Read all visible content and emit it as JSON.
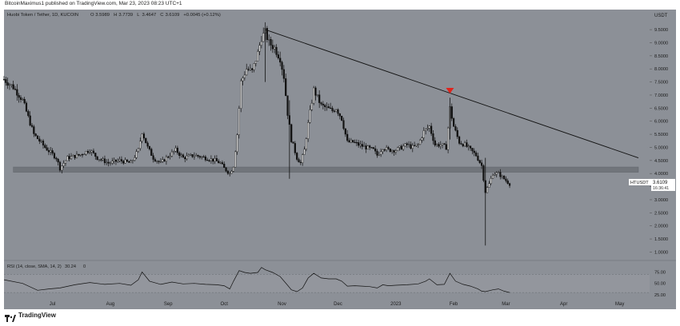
{
  "header": {
    "publisher_text": "BitcoinMaximus1 published on TradingView.com, Mar 23, 2023 08:23 UTC+1"
  },
  "footer": {
    "brand": "TradingView"
  },
  "colors": {
    "background": "#8c9097",
    "candle": "#111111",
    "trendline": "#111111",
    "support_zone": "#6f7379",
    "marker": "#e0231c",
    "price_tag_bg": "#ffffff"
  },
  "chart_data": [
    {
      "type": "candlestick",
      "title": "Huobi Token / Tether, 1D, KUCOIN",
      "ohlc_header": {
        "o_label": "O",
        "o": "3.5989",
        "h_label": "H",
        "h": "3.7739",
        "l_label": "L",
        "l": "3.4647",
        "c_label": "C",
        "c": "3.6109",
        "change": "+0.0045 (+0.12%)"
      },
      "currency": "USDT",
      "y_ticks": [
        "9.5000",
        "9.0000",
        "8.5000",
        "8.0000",
        "7.5000",
        "7.0000",
        "6.5000",
        "6.0000",
        "5.5000",
        "5.0000",
        "4.5000",
        "4.0000",
        "3.5000",
        "3.0000",
        "2.5000",
        "2.0000",
        "1.5000",
        "1.0000"
      ],
      "ylim": [
        0.8,
        9.9
      ],
      "x_ticks": [
        {
          "label": "Jul",
          "day": 16
        },
        {
          "label": "Aug",
          "day": 47
        },
        {
          "label": "Sep",
          "day": 78
        },
        {
          "label": "Oct",
          "day": 108
        },
        {
          "label": "Nov",
          "day": 139
        },
        {
          "label": "Dec",
          "day": 169
        },
        {
          "label": "2023",
          "day": 200
        },
        {
          "label": "Feb",
          "day": 231
        },
        {
          "label": "Mar",
          "day": 259
        },
        {
          "label": "Apr",
          "day": 290
        },
        {
          "label": "May",
          "day": 320
        }
      ],
      "x_range_days": [
        -10,
        336
      ],
      "close_path": [
        [
          -10,
          7.6
        ],
        [
          -5,
          7.3
        ],
        [
          0,
          6.8
        ],
        [
          6,
          5.5
        ],
        [
          12,
          5.0
        ],
        [
          18,
          4.6
        ],
        [
          20,
          4.2
        ],
        [
          24,
          4.6
        ],
        [
          30,
          4.7
        ],
        [
          36,
          4.9
        ],
        [
          40,
          4.6
        ],
        [
          46,
          4.4
        ],
        [
          52,
          4.5
        ],
        [
          58,
          4.4
        ],
        [
          62,
          4.9
        ],
        [
          64,
          5.6
        ],
        [
          67,
          5.0
        ],
        [
          70,
          4.6
        ],
        [
          74,
          4.4
        ],
        [
          77,
          4.6
        ],
        [
          82,
          4.9
        ],
        [
          86,
          4.6
        ],
        [
          92,
          4.7
        ],
        [
          98,
          4.6
        ],
        [
          103,
          4.5
        ],
        [
          106,
          4.4
        ],
        [
          108,
          4.2
        ],
        [
          111,
          4.0
        ],
        [
          113,
          4.3
        ],
        [
          115,
          5.5
        ],
        [
          117,
          7.5
        ],
        [
          120,
          8.0
        ],
        [
          123,
          7.9
        ],
        [
          126,
          8.6
        ],
        [
          128,
          9.2
        ],
        [
          130,
          9.4
        ],
        [
          132,
          9.0
        ],
        [
          135,
          8.8
        ],
        [
          138,
          8.4
        ],
        [
          140,
          7.7
        ],
        [
          142,
          6.3
        ],
        [
          144,
          5.3
        ],
        [
          147,
          4.6
        ],
        [
          149,
          4.4
        ],
        [
          151,
          4.9
        ],
        [
          153,
          5.9
        ],
        [
          156,
          7.2
        ],
        [
          158,
          6.9
        ],
        [
          160,
          6.6
        ],
        [
          163,
          6.5
        ],
        [
          166,
          6.4
        ],
        [
          168,
          6.5
        ],
        [
          171,
          6.1
        ],
        [
          174,
          5.2
        ],
        [
          177,
          5.2
        ],
        [
          180,
          5.1
        ],
        [
          184,
          5.0
        ],
        [
          188,
          4.9
        ],
        [
          190,
          4.7
        ],
        [
          193,
          5.0
        ],
        [
          196,
          4.9
        ],
        [
          200,
          4.9
        ],
        [
          203,
          5.0
        ],
        [
          206,
          5.1
        ],
        [
          209,
          5.0
        ],
        [
          212,
          5.1
        ],
        [
          215,
          5.6
        ],
        [
          218,
          5.8
        ],
        [
          221,
          5.1
        ],
        [
          224,
          5.1
        ],
        [
          227,
          5.0
        ],
        [
          229,
          6.5
        ],
        [
          231,
          5.8
        ],
        [
          234,
          5.2
        ],
        [
          237,
          5.1
        ],
        [
          240,
          4.9
        ],
        [
          243,
          4.7
        ],
        [
          246,
          4.3
        ],
        [
          248,
          3.3
        ],
        [
          250,
          3.6
        ],
        [
          252,
          4.0
        ],
        [
          255,
          4.0
        ],
        [
          258,
          3.8
        ],
        [
          261,
          3.6
        ]
      ],
      "wicks": [
        {
          "day": 248,
          "low": 1.25,
          "high": 4.6
        },
        {
          "day": 143,
          "low": 3.8,
          "high": 6.8
        },
        {
          "day": 229,
          "low": 5.3,
          "high": 6.9
        },
        {
          "day": 130,
          "low": 7.5,
          "high": 9.55
        }
      ],
      "trendline": {
        "from": [
          130,
          9.5
        ],
        "to": [
          330,
          4.6
        ]
      },
      "support_zone": {
        "from_day": -5,
        "to_day": 330,
        "low": 4.05,
        "high": 4.25
      },
      "marker": {
        "day": 229,
        "price": 7.15
      },
      "last_price": {
        "symbol": "HTUSDT",
        "value": "3.6109",
        "countdown": "16:36:41",
        "price": 3.6109
      }
    },
    {
      "type": "line",
      "title": "RSI (14, close, SMA, 14, 2)",
      "header_value": "30.24",
      "header_extra": "0",
      "y_ticks": [
        "75.00",
        "50.00",
        "25.00"
      ],
      "ylim": [
        18,
        95
      ],
      "band": [
        30,
        70
      ],
      "rsi_path": [
        [
          -10,
          58
        ],
        [
          0,
          50
        ],
        [
          8,
          35
        ],
        [
          14,
          38
        ],
        [
          20,
          40
        ],
        [
          28,
          47
        ],
        [
          36,
          52
        ],
        [
          44,
          48
        ],
        [
          52,
          50
        ],
        [
          58,
          46
        ],
        [
          62,
          58
        ],
        [
          64,
          75
        ],
        [
          68,
          55
        ],
        [
          74,
          48
        ],
        [
          80,
          53
        ],
        [
          86,
          49
        ],
        [
          92,
          50
        ],
        [
          98,
          48
        ],
        [
          104,
          47
        ],
        [
          108,
          45
        ],
        [
          111,
          38
        ],
        [
          113,
          55
        ],
        [
          116,
          78
        ],
        [
          119,
          74
        ],
        [
          122,
          72
        ],
        [
          126,
          74
        ],
        [
          128,
          85
        ],
        [
          130,
          80
        ],
        [
          134,
          74
        ],
        [
          138,
          65
        ],
        [
          142,
          46
        ],
        [
          144,
          36
        ],
        [
          147,
          32
        ],
        [
          150,
          40
        ],
        [
          153,
          62
        ],
        [
          156,
          72
        ],
        [
          160,
          62
        ],
        [
          164,
          60
        ],
        [
          168,
          60
        ],
        [
          171,
          55
        ],
        [
          174,
          44
        ],
        [
          178,
          45
        ],
        [
          182,
          44
        ],
        [
          186,
          43
        ],
        [
          190,
          40
        ],
        [
          193,
          47
        ],
        [
          196,
          45
        ],
        [
          200,
          46
        ],
        [
          206,
          47
        ],
        [
          212,
          49
        ],
        [
          216,
          55
        ],
        [
          218,
          60
        ],
        [
          222,
          47
        ],
        [
          226,
          48
        ],
        [
          229,
          72
        ],
        [
          232,
          55
        ],
        [
          236,
          48
        ],
        [
          240,
          44
        ],
        [
          244,
          38
        ],
        [
          246,
          33
        ],
        [
          248,
          32
        ],
        [
          252,
          36
        ],
        [
          255,
          38
        ],
        [
          258,
          33
        ],
        [
          261,
          30
        ]
      ]
    }
  ]
}
